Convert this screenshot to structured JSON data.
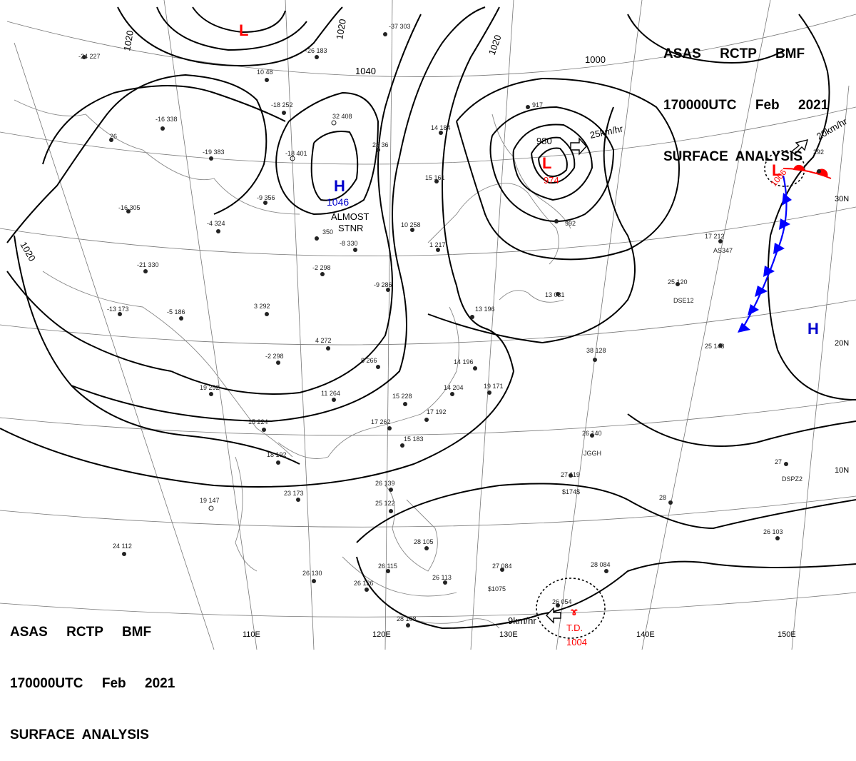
{
  "header": {
    "line1": "ASAS     RCTP     BMF",
    "line2": "170000UTC     Feb     2021",
    "line3": "SURFACE  ANALYSIS"
  },
  "colors": {
    "low": "#ff0000",
    "high": "#0000cc",
    "front": "#0000ff",
    "isobar": "#000000",
    "grid": "#777777"
  },
  "lon_labels": [
    "110E",
    "120E",
    "130E",
    "140E",
    "150E"
  ],
  "lat_labels": [
    "30N",
    "20N",
    "10N"
  ],
  "isobar_labels": [
    "1020",
    "1020",
    "1020",
    "1040",
    "1000",
    "980",
    "1020"
  ],
  "systems": [
    {
      "type": "L",
      "pressure": ""
    },
    {
      "type": "H",
      "pressure": "1046",
      "note_1": "ALMOST",
      "note_2": "STNR"
    },
    {
      "type": "L",
      "pressure": "974",
      "motion": "25km/hr"
    },
    {
      "type": "L",
      "pressure": "1006",
      "motion": "20km/hr"
    },
    {
      "type": "H",
      "pressure": ""
    },
    {
      "type": "T.D.",
      "pressure": "1004",
      "motion": "9km/hr"
    }
  ],
  "station_labels": [
    "-37 303",
    "-26 183",
    "-24 227",
    "10 48",
    "-18 252",
    "32 408",
    "-16 338",
    "-19 383",
    "-18 401",
    "26",
    "-9 356",
    "-4 324",
    "-16 305",
    "-21 330",
    "350",
    "-8 330",
    "-2 298",
    "-9 286",
    "-13 173",
    "-5 186",
    "3 292",
    "4 272",
    "-2 298",
    "8 266",
    "11 264",
    "19 292",
    "15 224",
    "18 192",
    "19 147",
    "23 173",
    "24 112",
    "26 130",
    "26 126",
    "28 108",
    "26 115",
    "28 105",
    "26 113",
    "25 122",
    "26 139",
    "15 228",
    "17 262",
    "14 204",
    "17 192",
    "15 183",
    "14 196",
    "19 171",
    "13 196",
    "28 36",
    "10 258",
    "15 161",
    "1 217",
    "14 184",
    "13 031",
    "917",
    "992",
    "26 140",
    "27 119",
    "28 084",
    "26 054",
    "27 084",
    "26 103",
    "27",
    "28",
    "25 143",
    "25 120",
    "17 212",
    "292",
    "38 128",
    "AS347",
    "DSE12",
    "JGGH",
    "$174$",
    "DSPZ2",
    "$1075"
  ]
}
